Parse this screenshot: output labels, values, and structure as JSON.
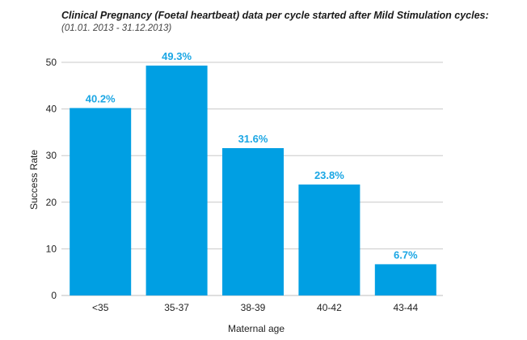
{
  "chart_data": {
    "type": "bar",
    "title": "Clinical Pregnancy (Foetal heartbeat) data per cycle started after Mild Stimulation cycles:",
    "subtitle": "(01.01. 2013 - 31.12.2013)",
    "categories": [
      "<35",
      "35-37",
      "38-39",
      "40-42",
      "43-44"
    ],
    "values": [
      40.2,
      49.3,
      31.6,
      23.8,
      6.7
    ],
    "data_labels": [
      "40.2%",
      "49.3%",
      "31.6%",
      "23.8%",
      "6.7%"
    ],
    "xlabel": "Maternal age",
    "ylabel": "Success Rate",
    "ylim": [
      0,
      50
    ],
    "yticks": [
      0,
      10,
      20,
      30,
      40,
      50
    ],
    "grid": true,
    "bar_color": "#009fe3",
    "label_color": "#1aa6e4",
    "grid_color": "#c8c8c8"
  }
}
